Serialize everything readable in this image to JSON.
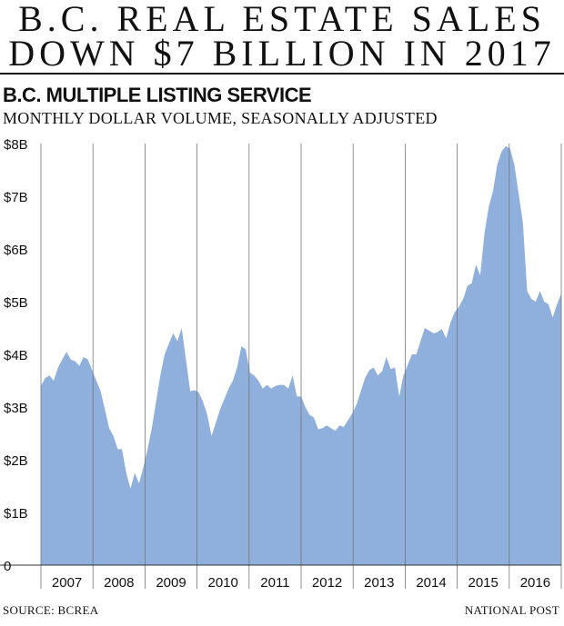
{
  "headline": {
    "line1": "B.C. REAL ESTATE SALES",
    "line2": "DOWN $7 BILLION IN 2017"
  },
  "footer": {
    "source": "SOURCE: BCREA",
    "credit": "NATIONAL POST"
  },
  "colors": {
    "area": "#8fafdc",
    "gridline": "#777777",
    "text": "#111111"
  },
  "chart_data": {
    "type": "area",
    "title": "B.C. MULTIPLE LISTING SERVICE",
    "subtitle": "MONTHLY DOLLAR VOLUME, SEASONALLY ADJUSTED",
    "ylabel": "",
    "xlabel": "",
    "ylim": [
      0,
      8
    ],
    "y_ticks": [
      "0",
      "$1B",
      "$2B",
      "$3B",
      "$4B",
      "$5B",
      "$6B",
      "$7B",
      "$8B"
    ],
    "x_tick_labels": [
      "2007",
      "2008",
      "2009",
      "2010",
      "2011",
      "2012",
      "2013",
      "2014",
      "2015",
      "2016"
    ],
    "x_range": [
      2007.0,
      2017.0
    ],
    "grid": "vertical lines at year boundaries",
    "series": [
      {
        "values_billions": [
          3.4,
          3.55,
          3.6,
          3.5,
          3.75,
          3.9,
          4.05,
          3.9,
          3.87,
          3.78,
          3.95,
          3.9,
          3.7,
          3.5,
          3.3,
          2.95,
          2.6,
          2.45,
          2.2,
          2.2,
          1.75,
          1.45,
          1.75,
          1.55,
          1.85,
          2.2,
          2.6,
          3.1,
          3.6,
          4.0,
          4.2,
          4.4,
          4.25,
          4.5,
          3.9,
          3.3,
          3.32,
          3.28,
          3.1,
          2.85,
          2.45,
          2.7,
          2.95,
          3.15,
          3.35,
          3.5,
          3.75,
          4.15,
          4.1,
          3.65,
          3.6,
          3.5,
          3.35,
          3.42,
          3.35,
          3.4,
          3.42,
          3.42,
          3.35,
          3.6,
          3.2,
          3.2,
          3.0,
          2.85,
          2.8,
          2.58,
          2.6,
          2.65,
          2.6,
          2.55,
          2.65,
          2.62,
          2.75,
          2.88,
          3.05,
          3.3,
          3.55,
          3.7,
          3.75,
          3.6,
          3.68,
          3.95,
          3.72,
          3.75,
          3.2,
          3.6,
          3.8,
          4.0,
          4.0,
          4.25,
          4.5,
          4.45,
          4.4,
          4.42,
          4.48,
          4.3,
          4.6,
          4.8,
          4.9,
          5.05,
          5.3,
          5.35,
          5.7,
          5.5,
          6.3,
          6.8,
          7.1,
          7.6,
          7.85,
          7.95,
          7.9,
          7.6,
          7.05,
          6.5,
          5.2,
          5.05,
          5.0,
          5.2,
          5.0,
          4.95,
          4.7,
          4.95,
          5.15
        ]
      }
    ]
  }
}
